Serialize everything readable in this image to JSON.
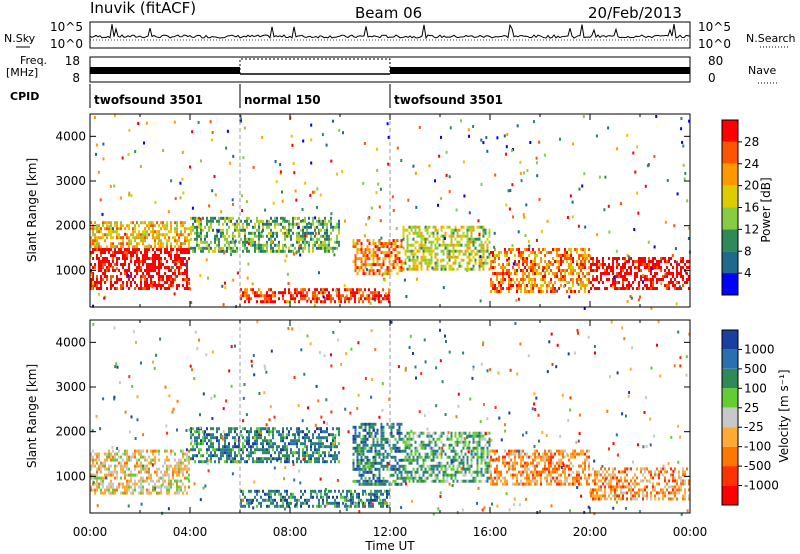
{
  "header": {
    "station": "Inuvik (fitACF)",
    "beam": "Beam 06",
    "date": "20/Feb/2013"
  },
  "left_labels": {
    "nsky": "N.Sky",
    "freq_line1": "Freq.",
    "freq_line2": "[MHz]",
    "cpid": "CPID"
  },
  "right_labels": {
    "nsearch": "N.Search",
    "nave": "Nave"
  },
  "noise_panel": {
    "left_ticks": [
      "10^5",
      "10^0"
    ],
    "right_ticks": [
      "10^5",
      "10^0"
    ]
  },
  "freq_panel": {
    "left_ticks": [
      "18",
      "8"
    ],
    "right_ticks": [
      "80",
      "0"
    ]
  },
  "cpid_segments": [
    {
      "label": "twofsound 3501",
      "start_hour": 0,
      "end_hour": 6
    },
    {
      "label": "normal 150",
      "start_hour": 6,
      "end_hour": 12
    },
    {
      "label": "twofsound 3501",
      "start_hour": 12,
      "end_hour": 24
    }
  ],
  "power_colorbar": {
    "label": "Power [dB]",
    "ticks": [
      "28",
      "24",
      "20",
      "16",
      "12",
      "8",
      "4"
    ],
    "colors": [
      "#ff0000",
      "#ff5500",
      "#ff9900",
      "#ddcc00",
      "#88cc44",
      "#2e8b57",
      "#1e6a8a",
      "#0000ff"
    ]
  },
  "velocity_colorbar": {
    "label": "Velocity [m s⁻¹]",
    "ticks": [
      "1000",
      "500",
      "100",
      "25",
      "-25",
      "-100",
      "-500",
      "-1000"
    ],
    "colors": [
      "#1a3fa0",
      "#2a70b0",
      "#2e8b57",
      "#66cc33",
      "#c8c8c8",
      "#ffaa33",
      "#ff7700",
      "#ff3300",
      "#ff0000"
    ]
  },
  "chart_data": [
    {
      "type": "heatmap",
      "panel": "power",
      "ylabel": "Slant Range [km]",
      "yticks": [
        "1000",
        "2000",
        "3000",
        "4000"
      ],
      "ylim": [
        180,
        4500
      ],
      "xlim_hours": [
        0,
        24
      ],
      "regions": [
        {
          "t0": 0.0,
          "t1": 4.0,
          "r0": 600,
          "r1": 1500,
          "level": "28"
        },
        {
          "t0": 0.0,
          "t1": 4.0,
          "r0": 1500,
          "r1": 2100,
          "level": "16"
        },
        {
          "t0": 4.0,
          "t1": 10.0,
          "r0": 1400,
          "r1": 2200,
          "level": "8"
        },
        {
          "t0": 6.0,
          "t1": 12.0,
          "r0": 300,
          "r1": 600,
          "level": "24"
        },
        {
          "t0": 10.5,
          "t1": 12.5,
          "r0": 900,
          "r1": 1700,
          "level": "20"
        },
        {
          "t0": 12.5,
          "t1": 16.0,
          "r0": 1000,
          "r1": 2000,
          "level": "12"
        },
        {
          "t0": 16.0,
          "t1": 20.0,
          "r0": 500,
          "r1": 1500,
          "level": "20"
        },
        {
          "t0": 20.0,
          "t1": 24.0,
          "r0": 600,
          "r1": 1300,
          "level": "28"
        }
      ]
    },
    {
      "type": "heatmap",
      "panel": "velocity",
      "xlabel": "Time UT",
      "ylabel": "Slant Range [km]",
      "yticks": [
        "1000",
        "2000",
        "3000",
        "4000"
      ],
      "xticks": [
        "00:00",
        "04:00",
        "08:00",
        "12:00",
        "16:00",
        "20:00",
        "00:00"
      ],
      "ylim": [
        180,
        4500
      ],
      "xlim_hours": [
        0,
        24
      ],
      "regions": [
        {
          "t0": 0.0,
          "t1": 4.0,
          "r0": 600,
          "r1": 1600,
          "level": "-100"
        },
        {
          "t0": 4.0,
          "t1": 10.0,
          "r0": 1300,
          "r1": 2100,
          "level": "100"
        },
        {
          "t0": 6.0,
          "t1": 12.0,
          "r0": 300,
          "r1": 700,
          "level": "100"
        },
        {
          "t0": 10.5,
          "t1": 12.5,
          "r0": 800,
          "r1": 2200,
          "level": "100"
        },
        {
          "t0": 12.5,
          "t1": 16.0,
          "r0": 900,
          "r1": 2000,
          "level": "25"
        },
        {
          "t0": 16.0,
          "t1": 20.0,
          "r0": 800,
          "r1": 1600,
          "level": "-500"
        },
        {
          "t0": 20.0,
          "t1": 24.0,
          "r0": 500,
          "r1": 1200,
          "level": "-500"
        }
      ]
    }
  ]
}
